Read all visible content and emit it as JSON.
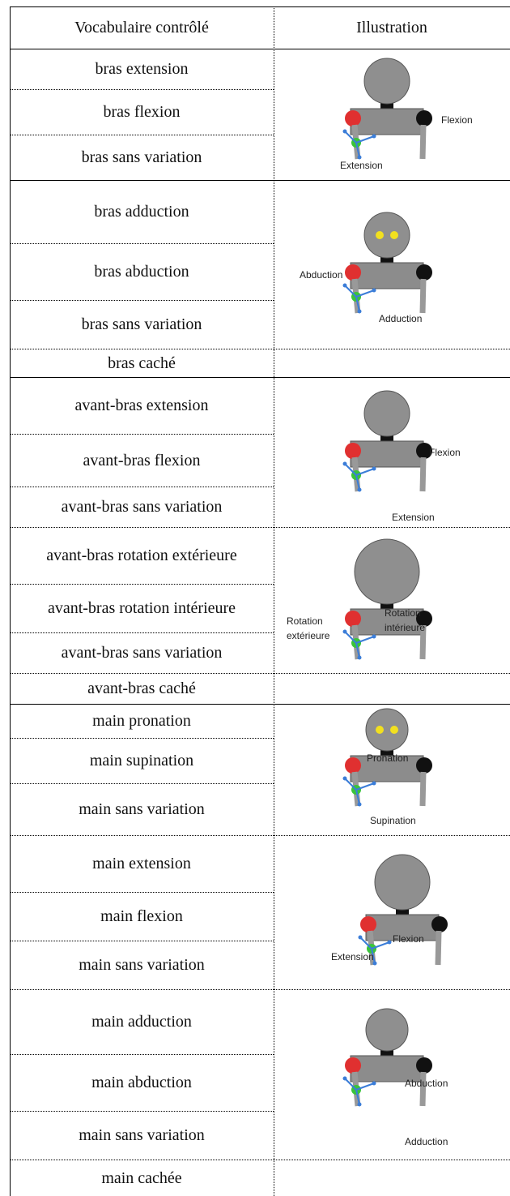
{
  "header": {
    "vocabulary": "Vocabulaire contrôlé",
    "illustration": "Illustration"
  },
  "groups": [
    {
      "rows": [
        "bras extension",
        "bras flexion",
        "bras sans variation"
      ],
      "illustration": {
        "labels": [
          {
            "lines": [
              "Flexion"
            ]
          },
          {
            "lines": [
              "Extension"
            ]
          }
        ]
      }
    },
    {
      "rows": [
        "bras adduction",
        "bras abduction",
        "bras sans variation"
      ],
      "hidden_row": "bras caché",
      "illustration": {
        "labels": [
          {
            "lines": [
              "Abduction"
            ]
          },
          {
            "lines": [
              "Adduction"
            ]
          }
        ]
      }
    },
    {
      "rows": [
        "avant-bras extension",
        "avant-bras flexion",
        "avant-bras sans variation"
      ],
      "illustration": {
        "labels": [
          {
            "lines": [
              "Flexion"
            ]
          },
          {
            "lines": [
              "Extension"
            ]
          }
        ]
      }
    },
    {
      "rows": [
        "avant-bras rotation extérieure",
        "avant-bras rotation intérieure",
        "avant-bras sans variation"
      ],
      "hidden_row": "avant-bras caché",
      "illustration": {
        "labels": [
          {
            "lines": [
              "Rotation",
              "extérieure"
            ]
          },
          {
            "lines": [
              "Rotation",
              "intérieure"
            ]
          }
        ]
      }
    },
    {
      "rows": [
        "main pronation",
        "main supination",
        "main sans variation"
      ],
      "illustration": {
        "labels": [
          {
            "lines": [
              "Pronation"
            ]
          },
          {
            "lines": [
              "Supination"
            ]
          }
        ]
      }
    },
    {
      "rows": [
        "main extension",
        "main flexion",
        "main sans variation"
      ],
      "illustration": {
        "labels": [
          {
            "lines": [
              "Flexion"
            ]
          },
          {
            "lines": [
              "Extension"
            ]
          }
        ]
      }
    },
    {
      "rows": [
        "main adduction",
        "main abduction",
        "main sans variation"
      ],
      "hidden_row": "main cachée",
      "illustration": {
        "labels": [
          {
            "lines": [
              "Abduction"
            ]
          },
          {
            "lines": [
              "Adduction"
            ]
          }
        ]
      }
    }
  ]
}
